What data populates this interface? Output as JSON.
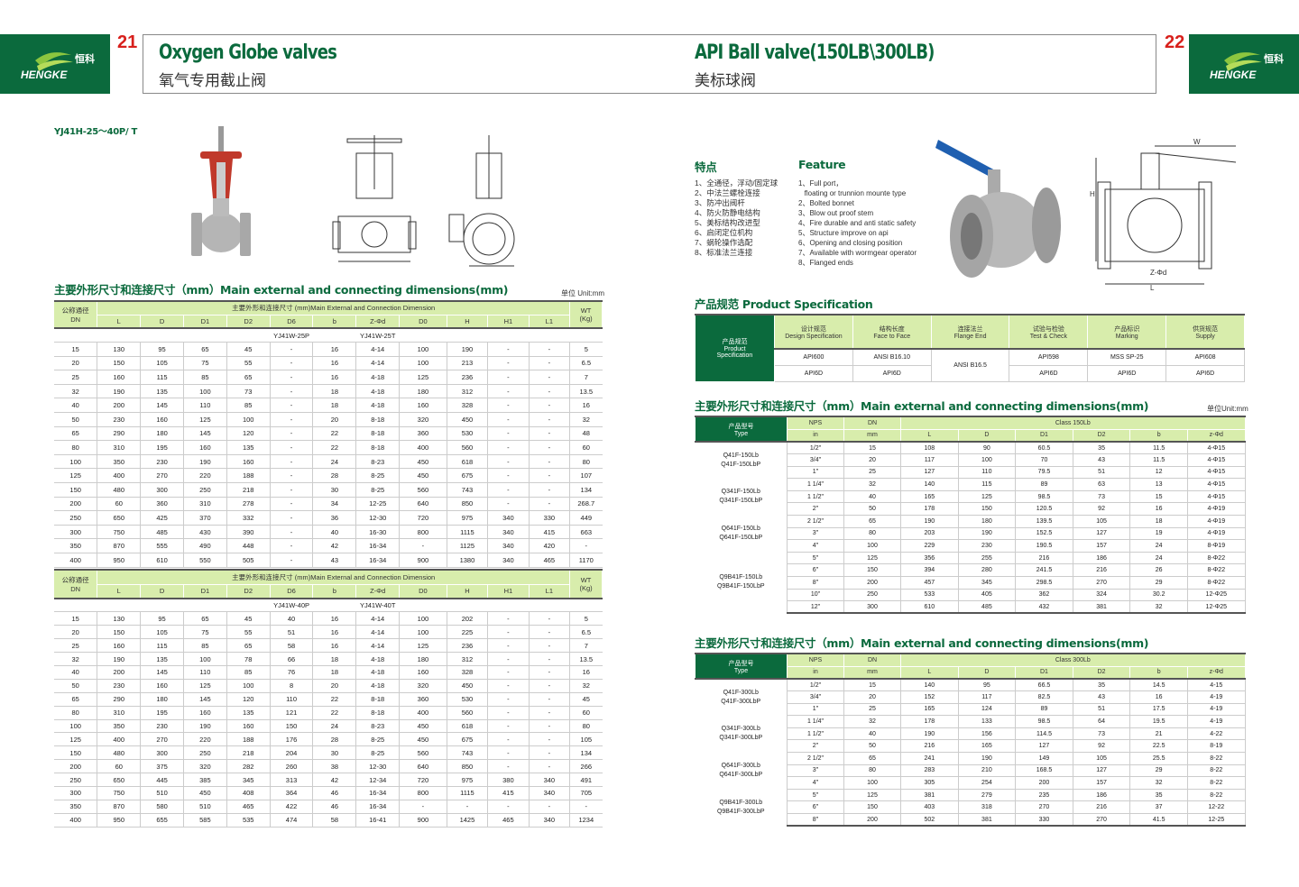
{
  "brand": {
    "name_cn": "恒科",
    "name_en": "HENGKE",
    "colors": {
      "green": "#0b6a3d",
      "light_green": "#d8edac",
      "page_number_red": "#d8201c"
    }
  },
  "left_page": {
    "page_number": "21",
    "title_en": "Oxygen Globe valves",
    "title_cn": "氧气专用截止阀",
    "model": "YJ41H-25～40P/ T",
    "section_title": "主要外形尺寸和连接尺寸（mm）Main external and connecting dimensions(mm)",
    "unit": "单位 Unit:mm",
    "columns": {
      "dn": "公称通径\nDN",
      "group": "主要外形和连接尺寸 (mm)Main External and Connection Dimension",
      "cols": [
        "L",
        "D",
        "D1",
        "D2",
        "D6",
        "b",
        "Z-Φd",
        "D0",
        "H",
        "H1",
        "L1"
      ],
      "wt": "WT\n(Kg)"
    },
    "tables": [
      {
        "models": [
          "YJ41W-25P",
          "YJ41W-25T"
        ],
        "rows": [
          [
            "15",
            "130",
            "95",
            "65",
            "45",
            "-",
            "16",
            "4-14",
            "100",
            "190",
            "-",
            "-",
            "5"
          ],
          [
            "20",
            "150",
            "105",
            "75",
            "55",
            "-",
            "16",
            "4-14",
            "100",
            "213",
            "-",
            "-",
            "6.5"
          ],
          [
            "25",
            "160",
            "115",
            "85",
            "65",
            "-",
            "16",
            "4-18",
            "125",
            "236",
            "-",
            "-",
            "7"
          ],
          [
            "32",
            "190",
            "135",
            "100",
            "73",
            "-",
            "18",
            "4-18",
            "180",
            "312",
            "-",
            "-",
            "13.5"
          ],
          [
            "40",
            "200",
            "145",
            "110",
            "85",
            "-",
            "18",
            "4-18",
            "160",
            "328",
            "-",
            "-",
            "16"
          ],
          [
            "50",
            "230",
            "160",
            "125",
            "100",
            "-",
            "20",
            "8-18",
            "320",
            "450",
            "-",
            "-",
            "32"
          ],
          [
            "65",
            "290",
            "180",
            "145",
            "120",
            "-",
            "22",
            "8-18",
            "360",
            "530",
            "-",
            "-",
            "48"
          ],
          [
            "80",
            "310",
            "195",
            "160",
            "135",
            "-",
            "22",
            "8-18",
            "400",
            "560",
            "-",
            "-",
            "60"
          ],
          [
            "100",
            "350",
            "230",
            "190",
            "160",
            "-",
            "24",
            "8-23",
            "450",
            "618",
            "-",
            "-",
            "80"
          ],
          [
            "125",
            "400",
            "270",
            "220",
            "188",
            "-",
            "28",
            "8-25",
            "450",
            "675",
            "-",
            "-",
            "107"
          ],
          [
            "150",
            "480",
            "300",
            "250",
            "218",
            "-",
            "30",
            "8-25",
            "560",
            "743",
            "-",
            "-",
            "134"
          ],
          [
            "200",
            "60",
            "360",
            "310",
            "278",
            "-",
            "34",
            "12-25",
            "640",
            "850",
            "-",
            "-",
            "268.7"
          ],
          [
            "250",
            "650",
            "425",
            "370",
            "332",
            "-",
            "36",
            "12-30",
            "720",
            "975",
            "340",
            "330",
            "449"
          ],
          [
            "300",
            "750",
            "485",
            "430",
            "390",
            "-",
            "40",
            "16-30",
            "800",
            "1115",
            "340",
            "415",
            "663"
          ],
          [
            "350",
            "870",
            "555",
            "490",
            "448",
            "-",
            "42",
            "16-34",
            "-",
            "1125",
            "340",
            "420",
            "-"
          ],
          [
            "400",
            "950",
            "610",
            "550",
            "505",
            "-",
            "43",
            "16-34",
            "900",
            "1380",
            "340",
            "465",
            "1170"
          ]
        ]
      },
      {
        "models": [
          "YJ41W-40P",
          "YJ41W-40T"
        ],
        "rows": [
          [
            "15",
            "130",
            "95",
            "65",
            "45",
            "40",
            "16",
            "4-14",
            "100",
            "202",
            "-",
            "-",
            "5"
          ],
          [
            "20",
            "150",
            "105",
            "75",
            "55",
            "51",
            "16",
            "4-14",
            "100",
            "225",
            "-",
            "-",
            "6.5"
          ],
          [
            "25",
            "160",
            "115",
            "85",
            "65",
            "58",
            "16",
            "4-14",
            "125",
            "236",
            "-",
            "-",
            "7"
          ],
          [
            "32",
            "190",
            "135",
            "100",
            "78",
            "66",
            "18",
            "4-18",
            "180",
            "312",
            "-",
            "-",
            "13.5"
          ],
          [
            "40",
            "200",
            "145",
            "110",
            "85",
            "76",
            "18",
            "4-18",
            "160",
            "328",
            "-",
            "-",
            "16"
          ],
          [
            "50",
            "230",
            "160",
            "125",
            "100",
            "8",
            "20",
            "4-18",
            "320",
            "450",
            "-",
            "-",
            "32"
          ],
          [
            "65",
            "290",
            "180",
            "145",
            "120",
            "110",
            "22",
            "8-18",
            "360",
            "530",
            "-",
            "-",
            "45"
          ],
          [
            "80",
            "310",
            "195",
            "160",
            "135",
            "121",
            "22",
            "8-18",
            "400",
            "560",
            "-",
            "-",
            "60"
          ],
          [
            "100",
            "350",
            "230",
            "190",
            "160",
            "150",
            "24",
            "8-23",
            "450",
            "618",
            "-",
            "-",
            "80"
          ],
          [
            "125",
            "400",
            "270",
            "220",
            "188",
            "176",
            "28",
            "8-25",
            "450",
            "675",
            "-",
            "-",
            "105"
          ],
          [
            "150",
            "480",
            "300",
            "250",
            "218",
            "204",
            "30",
            "8-25",
            "560",
            "743",
            "-",
            "-",
            "134"
          ],
          [
            "200",
            "60",
            "375",
            "320",
            "282",
            "260",
            "38",
            "12-30",
            "640",
            "850",
            "-",
            "-",
            "266"
          ],
          [
            "250",
            "650",
            "445",
            "385",
            "345",
            "313",
            "42",
            "12-34",
            "720",
            "975",
            "380",
            "340",
            "491"
          ],
          [
            "300",
            "750",
            "510",
            "450",
            "408",
            "364",
            "46",
            "16-34",
            "800",
            "1115",
            "415",
            "340",
            "705"
          ],
          [
            "350",
            "870",
            "580",
            "510",
            "465",
            "422",
            "46",
            "16-34",
            "-",
            "-",
            "-",
            "-",
            "-"
          ],
          [
            "400",
            "950",
            "655",
            "585",
            "535",
            "474",
            "58",
            "16-41",
            "900",
            "1425",
            "465",
            "340",
            "1234"
          ]
        ]
      }
    ]
  },
  "right_page": {
    "page_number": "22",
    "title_en": "API Ball valve(150LB\\300LB)",
    "title_cn": "美标球阀",
    "features_cn_title": "特点",
    "features_en_title": "Feature",
    "features_cn": [
      "1、全通径，浮动/固定球",
      "2、中法兰螺栓连接",
      "3、防冲出阀杆",
      "4、防火防静电结构",
      "5、美标结构改进型",
      "6、启闭定位机构",
      "7、蜗轮操作选配",
      "8、标准法兰连接"
    ],
    "features_en": [
      "1、Full port，",
      "   floating or trunnion mounte type",
      "2、Bolted bonnet",
      "3、Blow out proof stem",
      "4、Fire durable and anti static safety",
      "5、Structure improve on api",
      "6、Opening and closing position",
      "7、Available with wormgear operator",
      "8、Flanged ends"
    ],
    "drawing_labels": [
      "W",
      "H",
      "NPS",
      "D2",
      "D1",
      "D",
      "Z-Φd",
      "b",
      "L"
    ],
    "spec_title_cn": "产品规范",
    "spec_title_en": "Product Specification",
    "spec": {
      "row_header": [
        "产品规范",
        "Product",
        "Specification"
      ],
      "headers": [
        [
          "设计规范",
          "Design Specification"
        ],
        [
          "结构长度",
          "Face to Face"
        ],
        [
          "连接法兰",
          "Flange End"
        ],
        [
          "试验与检验",
          "Test & Check"
        ],
        [
          "产品标识",
          "Marking"
        ],
        [
          "供货规范",
          "Supply"
        ]
      ],
      "row1": [
        "API600",
        "ANSI B16.10",
        "ANSI B16.5",
        "API598",
        "MSS SP-25",
        "API608"
      ],
      "row2": [
        "API6D",
        "API6D",
        "API6D",
        "API6D",
        "API6D"
      ]
    },
    "section_title": "主要外形尺寸和连接尺寸（mm）Main external and connecting dimensions(mm)",
    "unit": "单位Unit:mm",
    "columns": {
      "type": "产品型号\nType",
      "nps": "NPS",
      "nps_unit": "in",
      "dn": "DN",
      "dn_unit": "mm",
      "cols": [
        "L",
        "D",
        "D1",
        "D2",
        "b",
        "z-Φd"
      ]
    },
    "tables": [
      {
        "class": "Class 150Lb",
        "types": [
          [
            "Q41F-150Lb",
            "Q41F-150LbP",
            3
          ],
          [
            "Q341F-150Lb",
            "Q341F-150LbP",
            3
          ],
          [
            "Q641F-150Lb",
            "Q641F-150LbP",
            3
          ],
          [
            "Q9B41F-150Lb",
            "Q9B41F-150LbP",
            5
          ]
        ],
        "rows": [
          [
            "1/2\"",
            "15",
            "108",
            "90",
            "60.5",
            "35",
            "11.5",
            "4-Φ15"
          ],
          [
            "3/4\"",
            "20",
            "117",
            "100",
            "70",
            "43",
            "11.5",
            "4-Φ15"
          ],
          [
            "1\"",
            "25",
            "127",
            "110",
            "79.5",
            "51",
            "12",
            "4-Φ15"
          ],
          [
            "1 1/4\"",
            "32",
            "140",
            "115",
            "89",
            "63",
            "13",
            "4-Φ15"
          ],
          [
            "1 1/2\"",
            "40",
            "165",
            "125",
            "98.5",
            "73",
            "15",
            "4-Φ15"
          ],
          [
            "2\"",
            "50",
            "178",
            "150",
            "120.5",
            "92",
            "16",
            "4-Φ19"
          ],
          [
            "2 1/2\"",
            "65",
            "190",
            "180",
            "139.5",
            "105",
            "18",
            "4-Φ19"
          ],
          [
            "3\"",
            "80",
            "203",
            "190",
            "152.5",
            "127",
            "19",
            "4-Φ19"
          ],
          [
            "4\"",
            "100",
            "229",
            "230",
            "190.5",
            "157",
            "24",
            "8-Φ19"
          ],
          [
            "5\"",
            "125",
            "356",
            "255",
            "216",
            "186",
            "24",
            "8-Φ22"
          ],
          [
            "6\"",
            "150",
            "394",
            "280",
            "241.5",
            "216",
            "26",
            "8-Φ22"
          ],
          [
            "8\"",
            "200",
            "457",
            "345",
            "298.5",
            "270",
            "29",
            "8-Φ22"
          ],
          [
            "10\"",
            "250",
            "533",
            "405",
            "362",
            "324",
            "30.2",
            "12-Φ25"
          ],
          [
            "12\"",
            "300",
            "610",
            "485",
            "432",
            "381",
            "32",
            "12-Φ25"
          ]
        ]
      },
      {
        "class": "Class 300Lb",
        "types": [
          [
            "Q41F-300Lb",
            "Q41F-300LbP",
            3
          ],
          [
            "Q341F-300Lb",
            "Q341F-300LbP",
            3
          ],
          [
            "Q641F-300Lb",
            "Q641F-300LbP",
            3
          ],
          [
            "Q9B41F-300Lb",
            "Q9B41F-300LbP",
            3
          ]
        ],
        "rows": [
          [
            "1/2\"",
            "15",
            "140",
            "95",
            "66.5",
            "35",
            "14.5",
            "4-15"
          ],
          [
            "3/4\"",
            "20",
            "152",
            "117",
            "82.5",
            "43",
            "16",
            "4-19"
          ],
          [
            "1\"",
            "25",
            "165",
            "124",
            "89",
            "51",
            "17.5",
            "4-19"
          ],
          [
            "1 1/4\"",
            "32",
            "178",
            "133",
            "98.5",
            "64",
            "19.5",
            "4-19"
          ],
          [
            "1 1/2\"",
            "40",
            "190",
            "156",
            "114.5",
            "73",
            "21",
            "4-22"
          ],
          [
            "2\"",
            "50",
            "216",
            "165",
            "127",
            "92",
            "22.5",
            "8-19"
          ],
          [
            "2 1/2\"",
            "65",
            "241",
            "190",
            "149",
            "105",
            "25.5",
            "8-22"
          ],
          [
            "3\"",
            "80",
            "283",
            "210",
            "168.5",
            "127",
            "29",
            "8-22"
          ],
          [
            "4\"",
            "100",
            "305",
            "254",
            "200",
            "157",
            "32",
            "8-22"
          ],
          [
            "5\"",
            "125",
            "381",
            "279",
            "235",
            "186",
            "35",
            "8-22"
          ],
          [
            "6\"",
            "150",
            "403",
            "318",
            "270",
            "216",
            "37",
            "12-22"
          ],
          [
            "8\"",
            "200",
            "502",
            "381",
            "330",
            "270",
            "41.5",
            "12-25"
          ]
        ]
      }
    ]
  }
}
